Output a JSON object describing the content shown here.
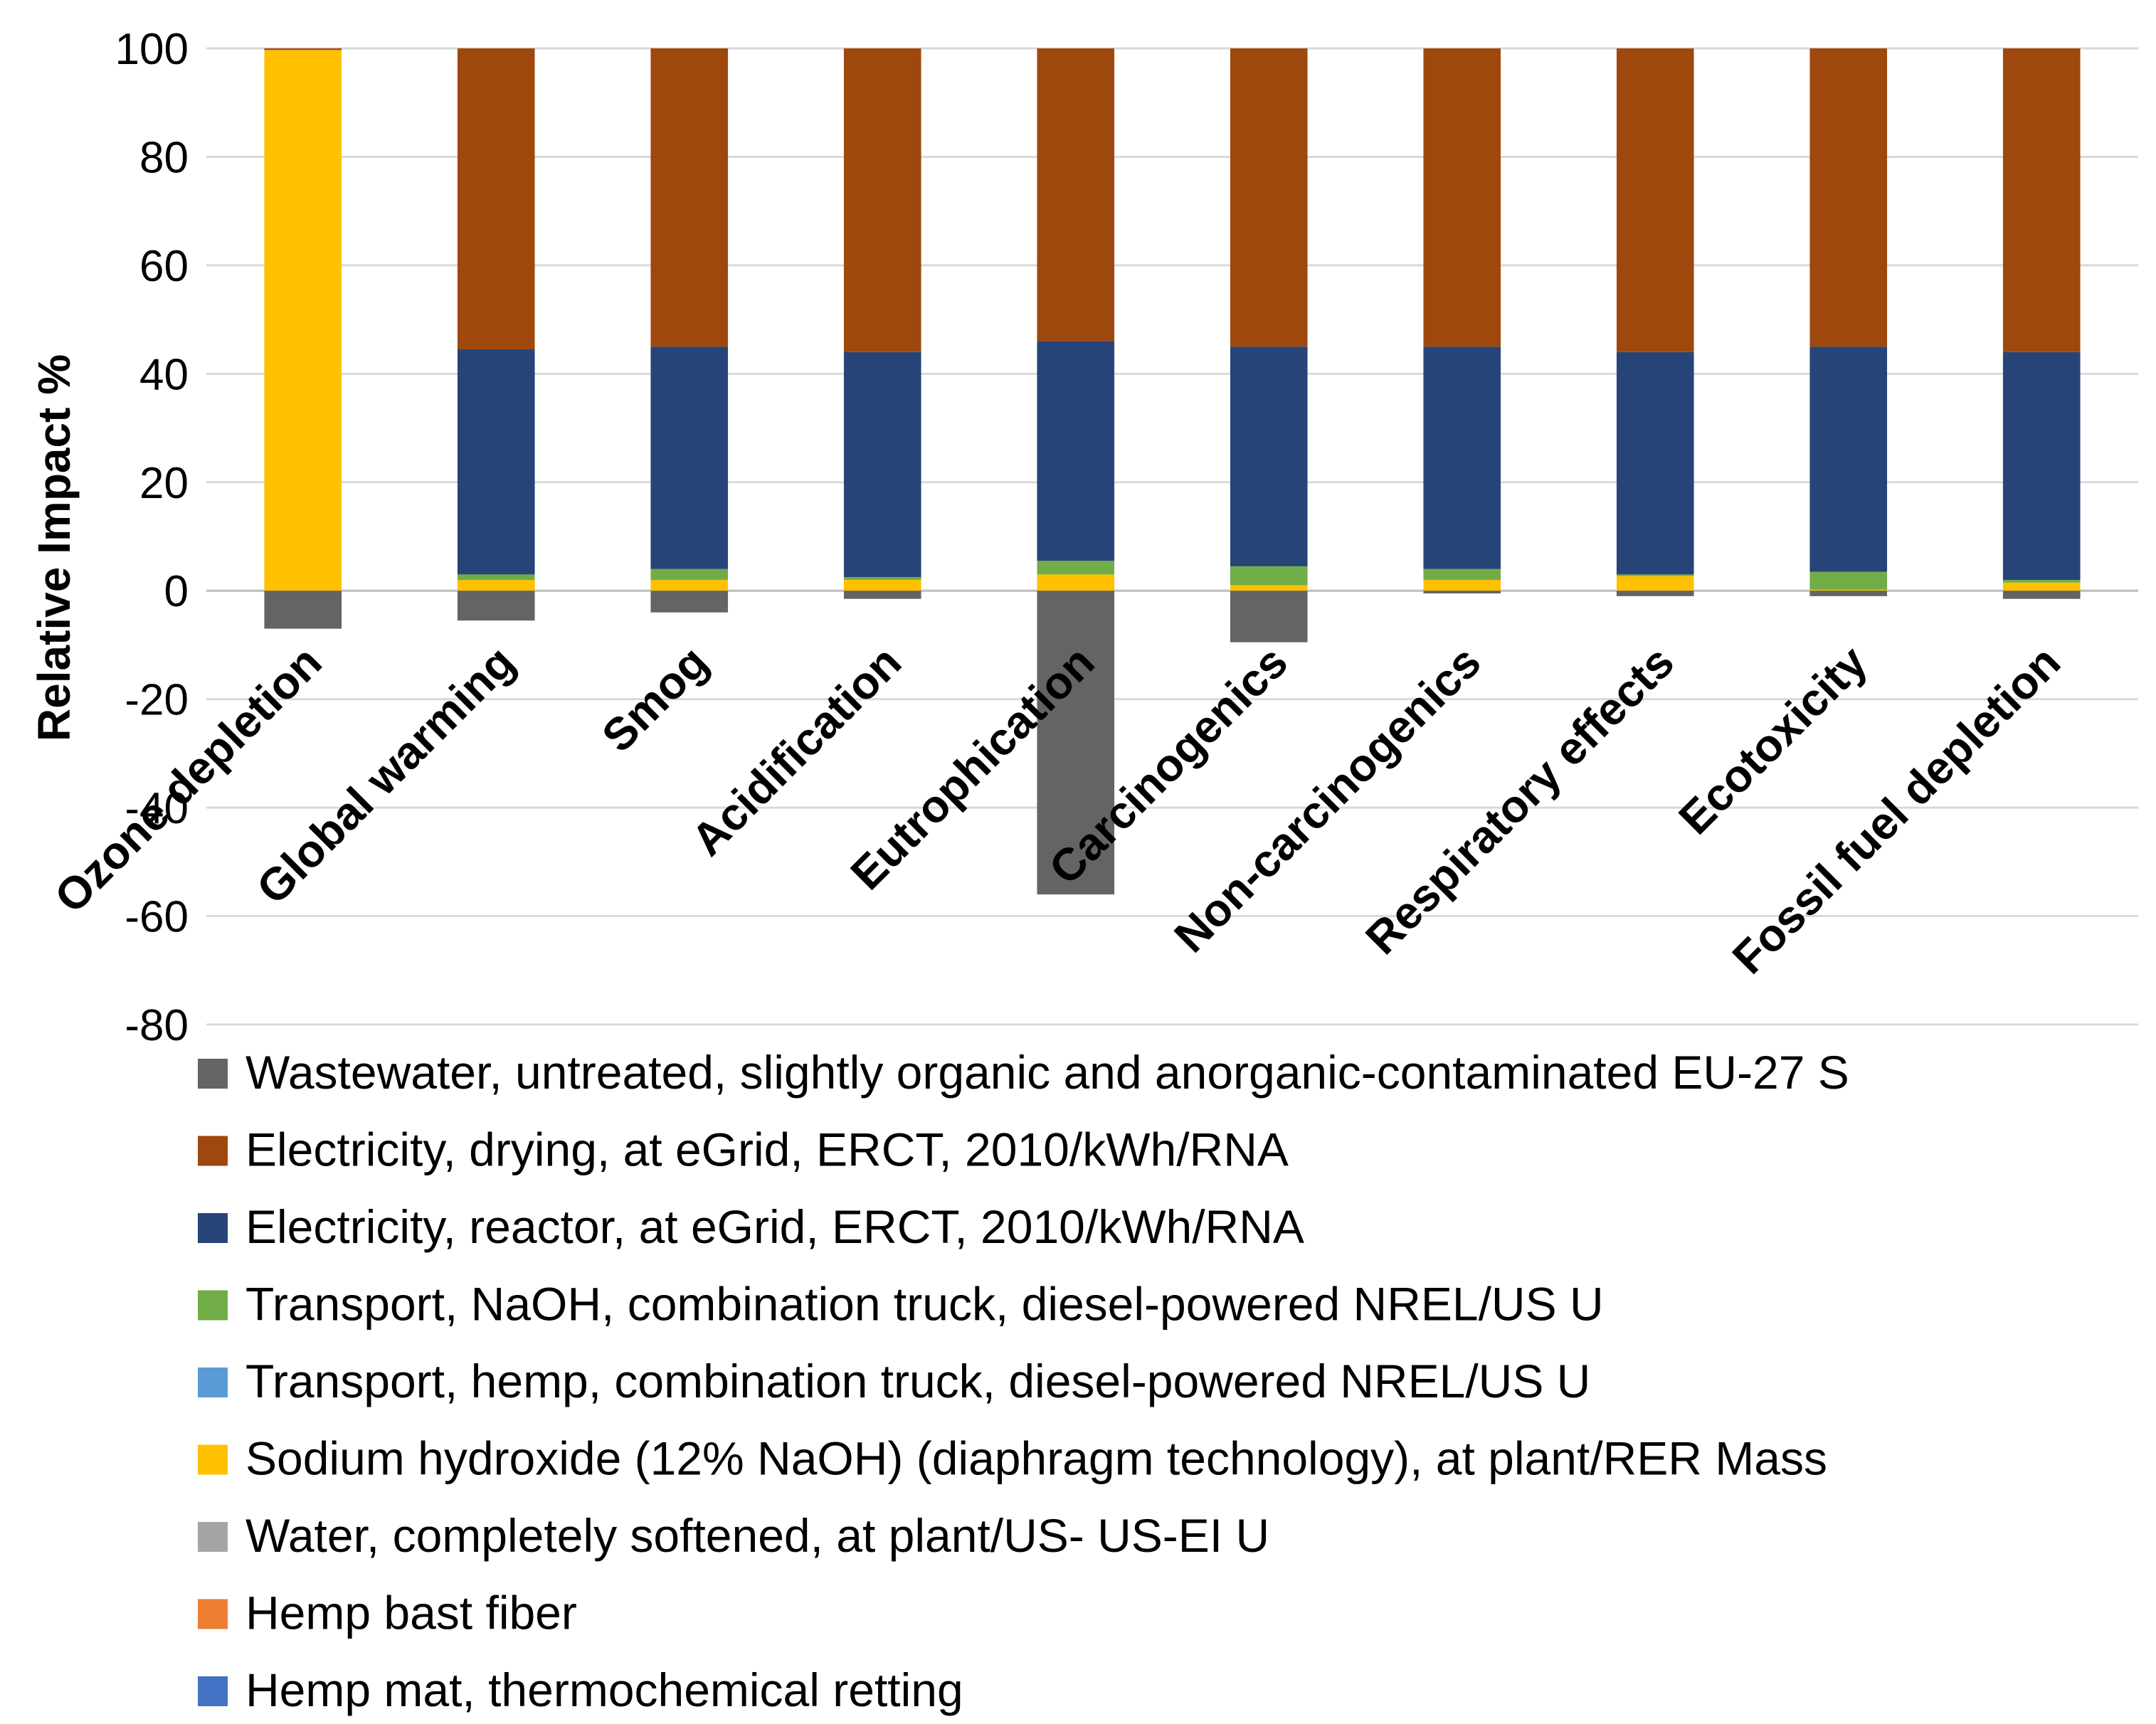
{
  "chart_data": {
    "type": "bar",
    "stacked": true,
    "title": "",
    "xlabel": "",
    "ylabel": "Relative Impact %",
    "ylim": [
      -80,
      100
    ],
    "yticks": [
      100,
      80,
      60,
      40,
      20,
      0,
      -20,
      -40,
      -60,
      -80
    ],
    "grid": true,
    "legend_position": "bottom",
    "categories": [
      "Ozone depletion",
      "Global warming",
      "Smog",
      "Acidification",
      "Eutrophication",
      "Carcinogenics",
      "Non-carcinogenics",
      "Respiratory effects",
      "Ecotoxicity",
      "Fossil fuel depletion"
    ],
    "series": [
      {
        "name": "Wastewater, untreated, slightly organic and anorganic-contaminated EU-27 S",
        "color": "#646464",
        "values": [
          -7,
          -5.5,
          -4,
          -1.5,
          -56,
          -9.5,
          -0.5,
          -1,
          -1,
          -1.5
        ]
      },
      {
        "name": "Electricity, drying, at eGrid, ERCT, 2010/kWh/RNA",
        "color": "#9e480e",
        "values": [
          0.3,
          55.5,
          55,
          56,
          54,
          55,
          55,
          56,
          55,
          56
        ]
      },
      {
        "name": "Electricity, reactor, at eGrid, ERCT, 2010/kWh/RNA",
        "color": "#264478",
        "values": [
          0,
          41.5,
          41,
          41.5,
          40.5,
          40.5,
          41,
          41,
          41.5,
          42
        ]
      },
      {
        "name": "Transport, NaOH, combination truck, diesel-powered NREL/US U",
        "color": "#70ad47",
        "values": [
          0,
          1,
          2,
          0.5,
          2.5,
          3.5,
          2,
          0.3,
          3.3,
          0.5
        ]
      },
      {
        "name": "Transport, hemp, combination truck, diesel-powered NREL/US U",
        "color": "#5b9bd5",
        "values": [
          0,
          0,
          0,
          0,
          0,
          0,
          0,
          0,
          0,
          0
        ]
      },
      {
        "name": "Sodium hydroxide (12% NaOH) (diaphragm technology), at plant/RER Mass",
        "color": "#ffc000",
        "values": [
          99.7,
          2,
          2,
          2,
          3,
          1,
          2,
          2.7,
          0.2,
          1.5
        ]
      },
      {
        "name": "Water, completely softened, at plant/US- US-EI U",
        "color": "#a5a5a5",
        "values": [
          0,
          0,
          0,
          0,
          0,
          0,
          0,
          0,
          0,
          0
        ]
      },
      {
        "name": "Hemp bast fiber",
        "color": "#ed7d31",
        "values": [
          0,
          0,
          0,
          0,
          0,
          0,
          0,
          0,
          0,
          0
        ]
      },
      {
        "name": "Hemp mat, thermochemical retting",
        "color": "#4472c4",
        "values": [
          0,
          0,
          0,
          0,
          0,
          0,
          0,
          0,
          0,
          0
        ]
      }
    ],
    "stack_order_bottom_to_top": [
      "Sodium hydroxide (12% NaOH) (diaphragm technology), at plant/RER Mass",
      "Transport, NaOH, combination truck, diesel-powered NREL/US U",
      "Transport, hemp, combination truck, diesel-powered NREL/US U",
      "Electricity, reactor, at eGrid, ERCT, 2010/kWh/RNA",
      "Electricity, drying, at eGrid, ERCT, 2010/kWh/RNA"
    ]
  }
}
